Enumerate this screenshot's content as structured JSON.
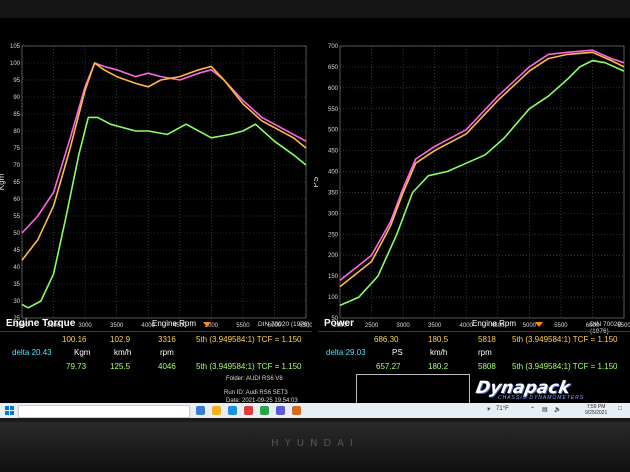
{
  "chart_data": [
    {
      "type": "line",
      "title": "Engine Torque",
      "xlabel": "Engine Rpm",
      "ylabel": "Kgm",
      "xlim": [
        2000,
        6500
      ],
      "ylim": [
        25,
        105
      ],
      "xticks": [
        "2000",
        "2500",
        "3000",
        "3500",
        "4000",
        "4500",
        "5000",
        "5500",
        "6000",
        "6500"
      ],
      "yticks": [
        "25",
        "30",
        "35",
        "40",
        "45",
        "50",
        "55",
        "60",
        "65",
        "70",
        "75",
        "80",
        "85",
        "90",
        "95",
        "100",
        "105"
      ],
      "grid": true,
      "series": [
        {
          "color": "#ff66e0",
          "x": [
            2000,
            2250,
            2500,
            2750,
            3000,
            3150,
            3300,
            3500,
            3800,
            4000,
            4200,
            4500,
            4800,
            5000,
            5200,
            5500,
            5800,
            6000,
            6300,
            6500
          ],
          "y": [
            50,
            55,
            62,
            77,
            93,
            100,
            99,
            98,
            96,
            97,
            96,
            95,
            97,
            98,
            95,
            89,
            84,
            82,
            79,
            77
          ]
        },
        {
          "color": "#ffbb44",
          "x": [
            2000,
            2250,
            2500,
            2750,
            3000,
            3150,
            3300,
            3500,
            3800,
            4000,
            4200,
            4500,
            4800,
            5000,
            5200,
            5500,
            5800,
            6000,
            6300,
            6500
          ],
          "y": [
            42,
            48,
            58,
            74,
            92,
            100,
            98,
            96,
            94,
            93,
            95,
            96,
            98,
            99,
            95,
            88,
            83,
            81,
            78,
            75
          ]
        },
        {
          "color": "#88ff66",
          "x": [
            2000,
            2100,
            2300,
            2500,
            2700,
            2900,
            3050,
            3200,
            3400,
            3600,
            3800,
            4000,
            4300,
            4600,
            5000,
            5300,
            5500,
            5700,
            6000,
            6300,
            6500
          ],
          "y": [
            29,
            28,
            30,
            38,
            55,
            73,
            84,
            84,
            82,
            81,
            80,
            80,
            79,
            82,
            78,
            79,
            80,
            82,
            77,
            73,
            70
          ]
        }
      ],
      "rpm_marker": "5817",
      "din": "DIN 70020 (1976)"
    },
    {
      "type": "line",
      "title": "Power",
      "xlabel": "Engine Rpm",
      "ylabel": "PS",
      "xlim": [
        2000,
        6500
      ],
      "ylim": [
        50,
        700
      ],
      "xticks": [
        "2000",
        "2500",
        "3000",
        "3500",
        "4000",
        "4500",
        "5000",
        "5500",
        "6000",
        "6500"
      ],
      "yticks": [
        "50",
        "100",
        "150",
        "200",
        "250",
        "300",
        "350",
        "400",
        "450",
        "500",
        "550",
        "600",
        "650",
        "700"
      ],
      "grid": true,
      "series": [
        {
          "color": "#ff66e0",
          "x": [
            2000,
            2500,
            2800,
            3000,
            3200,
            3500,
            4000,
            4500,
            5000,
            5300,
            5600,
            6000,
            6300,
            6500
          ],
          "y": [
            140,
            200,
            280,
            360,
            430,
            460,
            500,
            580,
            650,
            680,
            685,
            690,
            670,
            660
          ]
        },
        {
          "color": "#ffbb44",
          "x": [
            2000,
            2500,
            2800,
            3000,
            3200,
            3500,
            4000,
            4500,
            5000,
            5300,
            5600,
            6000,
            6300,
            6500
          ],
          "y": [
            125,
            185,
            270,
            350,
            420,
            450,
            490,
            570,
            640,
            670,
            680,
            685,
            665,
            650
          ]
        },
        {
          "color": "#88ff66",
          "x": [
            2000,
            2300,
            2600,
            2900,
            3150,
            3400,
            3700,
            4000,
            4300,
            4600,
            5000,
            5300,
            5600,
            5800,
            6000,
            6200,
            6500
          ],
          "y": [
            80,
            100,
            150,
            250,
            350,
            390,
            400,
            420,
            440,
            480,
            550,
            580,
            620,
            650,
            665,
            660,
            640
          ]
        }
      ],
      "din": "DIN 70020 (1976)"
    }
  ],
  "readout": {
    "torque": {
      "row1": {
        "kgm": "100.16",
        "kmh": "102.9",
        "rpm": "3316",
        "gear": "5th (3.949584:1) TCF = 1.150"
      },
      "delta": "delta 20.43",
      "unit_kgm": "Kgm",
      "unit_kmh": "km/h",
      "unit_rpm": "rpm",
      "row2": {
        "kgm": "79.73",
        "kmh": "125.5",
        "rpm": "4046",
        "gear": "5th (3.949584:1) TCF = 1.150"
      }
    },
    "power": {
      "row1": {
        "ps": "686.30",
        "kmh": "180.5",
        "rpm": "5818",
        "gear": "5th (3.949584:1) TCF = 1.150"
      },
      "delta": "delta 29.03",
      "unit_ps": "PS",
      "unit_kmh": "km/h",
      "unit_rpm": "rpm",
      "row2": {
        "ps": "657.27",
        "kmh": "180.2",
        "rpm": "5808",
        "gear": "5th (3.949584:1) TCF = 1.150"
      }
    },
    "folder": "Folder: AUDI RS6 V8",
    "run_id": "Run ID: Audi RS6 SET3",
    "date": "Date: 2021-09-25 19:54:03"
  },
  "logo": {
    "name": "Dynapack",
    "sub": "CHASSIS DYNAMOMETERS"
  },
  "taskbar": {
    "temp": "71°F",
    "time": "7:59 PM",
    "date": "9/25/2021"
  },
  "monitor_brand": "HYUNDAI"
}
